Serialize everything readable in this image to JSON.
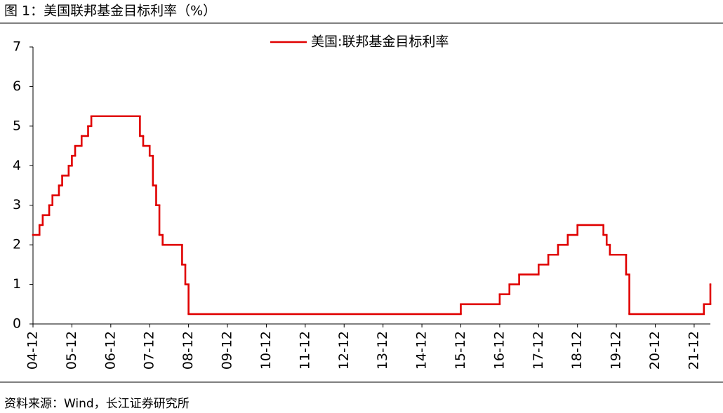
{
  "chart_data": {
    "type": "step",
    "title": "图 1：美国联邦基金目标利率（%）",
    "source": "资料来源：Wind，长江证券研究所",
    "series": [
      {
        "name": "美国:联邦基金目标利率",
        "color": "#e00000",
        "x": [
          "04-12",
          "05-02",
          "05-03",
          "05-05",
          "05-06",
          "05-08",
          "05-09",
          "05-11",
          "05-12",
          "06-01",
          "06-03",
          "06-05",
          "06-06",
          "07-09",
          "07-10",
          "07-12",
          "08-01",
          "08-02",
          "08-03",
          "08-04",
          "08-10",
          "08-11",
          "08-12",
          "15-12",
          "16-12",
          "17-03",
          "17-06",
          "17-12",
          "18-03",
          "18-06",
          "18-09",
          "18-12",
          "19-08",
          "19-09",
          "19-10",
          "20-03",
          "20-04",
          "22-03",
          "22-05"
        ],
        "values": [
          2.25,
          2.5,
          2.75,
          3.0,
          3.25,
          3.5,
          3.75,
          4.0,
          4.25,
          4.5,
          4.75,
          5.0,
          5.25,
          4.75,
          4.5,
          4.25,
          3.5,
          3.0,
          2.25,
          2.0,
          1.5,
          1.0,
          0.25,
          0.5,
          0.75,
          1.0,
          1.25,
          1.5,
          1.75,
          2.0,
          2.25,
          2.5,
          2.25,
          2.0,
          1.75,
          1.25,
          0.25,
          0.5,
          1.0
        ]
      }
    ],
    "xlim": [
      "04-12",
      "22-05"
    ],
    "xticks": [
      "04-12",
      "05-12",
      "06-12",
      "07-12",
      "08-12",
      "09-12",
      "10-12",
      "11-12",
      "12-12",
      "13-12",
      "14-12",
      "15-12",
      "16-12",
      "17-12",
      "18-12",
      "19-12",
      "20-12",
      "21-12"
    ],
    "ylim": [
      0,
      7
    ],
    "yticks": [
      0,
      1,
      2,
      3,
      4,
      5,
      6,
      7
    ],
    "grid": false,
    "legend": "top"
  }
}
